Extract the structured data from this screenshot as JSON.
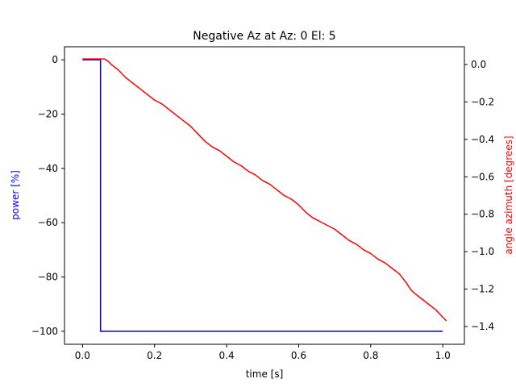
{
  "chart_data": {
    "type": "line",
    "title": "Negative Az at Az: 0 El: 5",
    "xlabel": "time [s]",
    "ylabel_left": "power [%]",
    "ylabel_right": "angle azimuth [degrees]",
    "xlim": [
      -0.05,
      1.06
    ],
    "ylim_left": [
      -104.8,
      4.8
    ],
    "ylim_right": [
      -1.495,
      0.095
    ],
    "xticks": [
      0.0,
      0.2,
      0.4,
      0.6,
      0.8,
      1.0
    ],
    "xtick_labels": [
      "0.0",
      "0.2",
      "0.4",
      "0.6",
      "0.8",
      "1.0"
    ],
    "yticks_left": [
      0,
      -20,
      -40,
      -60,
      -80,
      -100
    ],
    "ytick_labels_left": [
      "0",
      "−20",
      "−40",
      "−60",
      "−80",
      "−100"
    ],
    "yticks_right": [
      0.0,
      -0.2,
      -0.4,
      -0.6,
      -0.8,
      -1.0,
      -1.2,
      -1.4
    ],
    "ytick_labels_right": [
      "0.0",
      "−0.2",
      "−0.4",
      "−0.6",
      "−0.8",
      "−1.0",
      "−1.2",
      "−1.4"
    ],
    "grid": false,
    "series": [
      {
        "axis": "left",
        "color": "#0000cc",
        "x": [
          0.0,
          0.05,
          0.05,
          1.0
        ],
        "y": [
          0,
          0,
          -100,
          -100
        ]
      },
      {
        "axis": "right",
        "color": "#ff0000",
        "x": [
          0.0,
          0.02,
          0.04,
          0.06,
          0.07,
          0.08,
          0.1,
          0.12,
          0.14,
          0.16,
          0.18,
          0.2,
          0.22,
          0.24,
          0.26,
          0.28,
          0.3,
          0.32,
          0.34,
          0.36,
          0.38,
          0.4,
          0.42,
          0.44,
          0.46,
          0.48,
          0.5,
          0.52,
          0.54,
          0.56,
          0.58,
          0.6,
          0.62,
          0.64,
          0.66,
          0.68,
          0.7,
          0.72,
          0.74,
          0.76,
          0.78,
          0.8,
          0.82,
          0.84,
          0.86,
          0.88,
          0.9,
          0.91,
          0.92,
          0.94,
          0.96,
          0.98,
          1.0,
          1.01
        ],
        "y": [
          0.03,
          0.03,
          0.03,
          0.03,
          0.02,
          0.0,
          -0.03,
          -0.07,
          -0.1,
          -0.13,
          -0.16,
          -0.19,
          -0.21,
          -0.24,
          -0.27,
          -0.3,
          -0.33,
          -0.37,
          -0.41,
          -0.44,
          -0.46,
          -0.49,
          -0.52,
          -0.54,
          -0.57,
          -0.59,
          -0.62,
          -0.64,
          -0.67,
          -0.7,
          -0.72,
          -0.75,
          -0.79,
          -0.82,
          -0.84,
          -0.86,
          -0.88,
          -0.91,
          -0.94,
          -0.96,
          -0.99,
          -1.01,
          -1.04,
          -1.06,
          -1.09,
          -1.12,
          -1.17,
          -1.2,
          -1.22,
          -1.25,
          -1.28,
          -1.31,
          -1.35,
          -1.37
        ]
      }
    ]
  }
}
